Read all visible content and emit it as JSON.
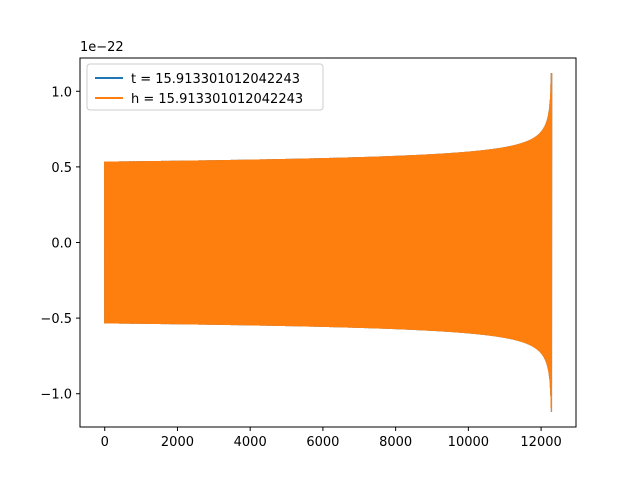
{
  "chart_data": {
    "type": "line",
    "title": "",
    "xlabel": "",
    "ylabel": "",
    "y_offset_label": "1e−22",
    "xlim": [
      -680,
      12960
    ],
    "ylim": [
      -1.22,
      1.22
    ],
    "x_ticks": [
      0,
      2000,
      4000,
      6000,
      8000,
      10000,
      12000
    ],
    "x_tick_labels": [
      "0",
      "2000",
      "4000",
      "6000",
      "8000",
      "10000",
      "12000"
    ],
    "y_ticks": [
      -1.0,
      -0.5,
      0.0,
      0.5,
      1.0
    ],
    "y_tick_labels": [
      "−1.0",
      "−0.5",
      "0.0",
      "0.5",
      "1.0"
    ],
    "grid": false,
    "legend_position": "upper-left",
    "series": [
      {
        "name": "t = 15.913301012042243",
        "color": "#1f77b4",
        "kind": "chirp",
        "x_start": 0,
        "x_end": 12290,
        "amplitude_start": 0.535,
        "amplitude_end": 1.12,
        "cycles_visible_start": 80
      },
      {
        "name": "h = 15.913301012042243",
        "color": "#ff7f0e",
        "kind": "chirp",
        "x_start": 0,
        "x_end": 12290,
        "amplitude_start": 0.535,
        "amplitude_end": 1.12,
        "cycles_visible_start": 80
      }
    ]
  }
}
